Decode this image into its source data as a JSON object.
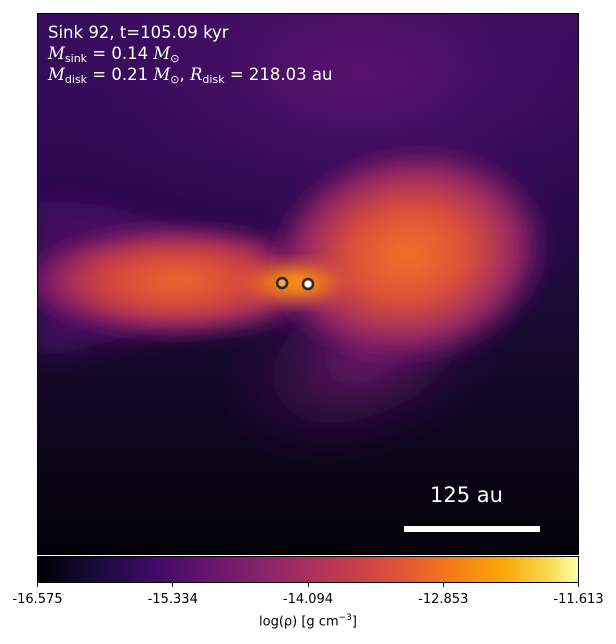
{
  "info": {
    "line1": "Sink 92, t=105.09 kyr",
    "sink_mass_sub": "sink",
    "sink_mass_value": "= 0.14",
    "disk_mass_sub": "disk",
    "disk_mass_value": "= 0.21",
    "disk_radius_sub": "disk",
    "disk_radius_value": "= 218.03 au",
    "mass_symbol": "M",
    "radius_symbol": "R",
    "solar_symbol": "⊙"
  },
  "scalebar": {
    "label": "125 au"
  },
  "colorbar": {
    "ticks": [
      "-16.575",
      "-15.334",
      "-14.094",
      "-12.853",
      "-11.613"
    ],
    "label_prefix": "log(ρ) [g cm",
    "label_exp": "−3",
    "label_suffix": "]",
    "colormap": "inferno"
  },
  "sinks": {
    "count": 2
  }
}
